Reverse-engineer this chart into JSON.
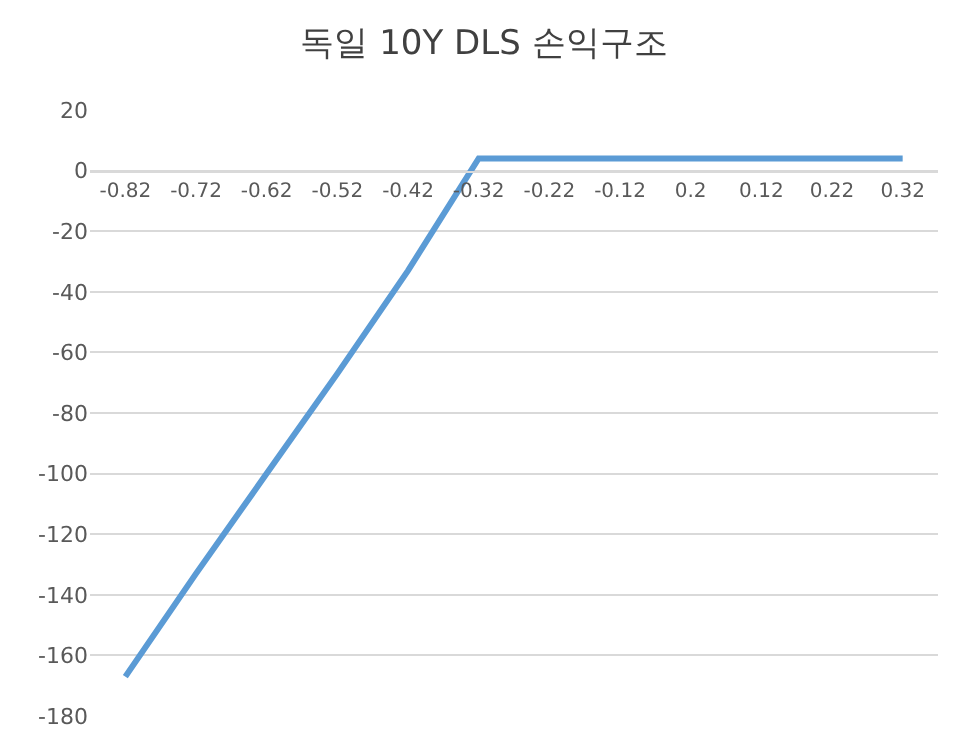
{
  "chart_data": {
    "type": "line",
    "title": "독일 10Y DLS 손익구조",
    "categories": [
      "-0.82",
      "-0.72",
      "-0.62",
      "-0.52",
      "-0.42",
      "-0.32",
      "-0.22",
      "-0.12",
      "0.2",
      "0.12",
      "0.22",
      "0.32"
    ],
    "series": [
      {
        "color": "#5b9bd5",
        "values": [
          -167,
          -133,
          -100,
          -67,
          -33,
          4,
          4,
          4,
          4,
          4,
          4,
          4
        ]
      }
    ],
    "ylim": [
      -180,
      20
    ],
    "yticks": [
      -180,
      -160,
      -140,
      -120,
      -100,
      -80,
      -60,
      -40,
      -20,
      0,
      20
    ],
    "grid": "y",
    "legend": false,
    "marker": "none",
    "line_style": "solid"
  }
}
